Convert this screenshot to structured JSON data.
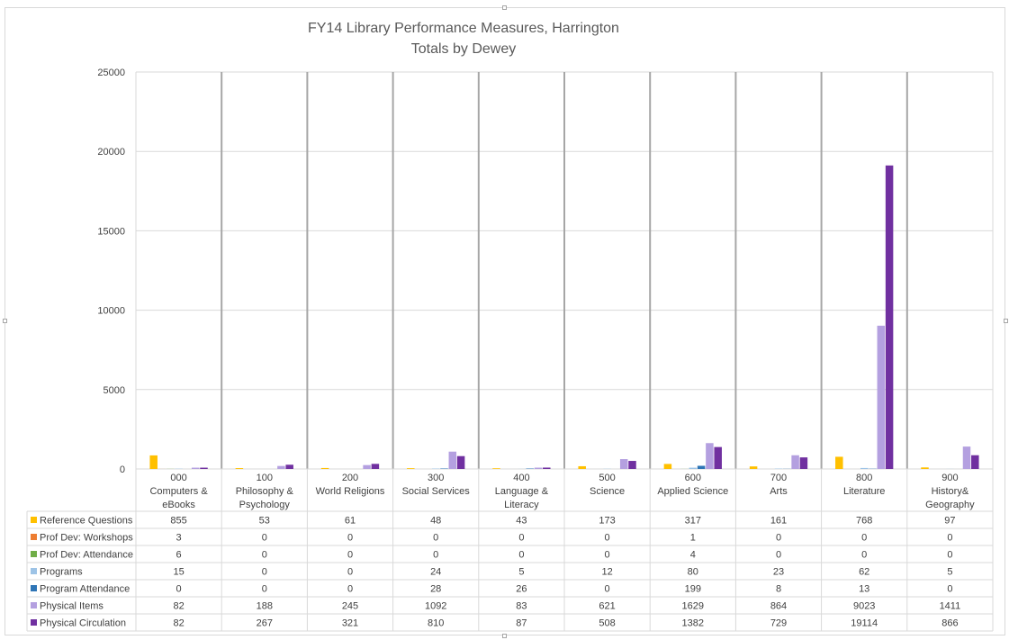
{
  "chart_data": {
    "type": "bar",
    "title": "FY14 Library Performance Measures, Harrington",
    "subtitle": "Totals by Dewey",
    "ylim": [
      0,
      25000
    ],
    "yticks": [
      0,
      5000,
      10000,
      15000,
      20000,
      25000
    ],
    "grid": true,
    "legend": "data-table",
    "categories": [
      [
        "000",
        "Computers &",
        "eBooks"
      ],
      [
        "100",
        "Philosophy &",
        "Psychology"
      ],
      [
        "200",
        "World Religions"
      ],
      [
        "300",
        "Social Services"
      ],
      [
        "400",
        "Language &",
        "Literacy"
      ],
      [
        "500",
        "Science"
      ],
      [
        "600",
        "Applied Science"
      ],
      [
        "700",
        "Arts"
      ],
      [
        "800",
        "Literature"
      ],
      [
        "900",
        "History&",
        "Geography"
      ]
    ],
    "series": [
      {
        "name": "Reference Questions",
        "color": "#ffc000",
        "values": [
          855,
          53,
          61,
          48,
          43,
          173,
          317,
          161,
          768,
          97
        ]
      },
      {
        "name": "Prof Dev: Workshops",
        "color": "#ed7d31",
        "values": [
          3,
          0,
          0,
          0,
          0,
          0,
          1,
          0,
          0,
          0
        ]
      },
      {
        "name": "Prof Dev: Attendance",
        "color": "#70ad47",
        "values": [
          6,
          0,
          0,
          0,
          0,
          0,
          4,
          0,
          0,
          0
        ]
      },
      {
        "name": "Programs",
        "color": "#9dc3e6",
        "values": [
          15,
          0,
          0,
          24,
          5,
          12,
          80,
          23,
          62,
          5
        ]
      },
      {
        "name": "Program Attendance",
        "color": "#2e75b6",
        "values": [
          0,
          0,
          0,
          28,
          26,
          0,
          199,
          8,
          13,
          0
        ]
      },
      {
        "name": "Physical Items",
        "color": "#b4a0e0",
        "values": [
          82,
          188,
          245,
          1092,
          83,
          621,
          1629,
          864,
          9023,
          1411
        ]
      },
      {
        "name": "Physical Circulation",
        "color": "#7030a0",
        "values": [
          82,
          267,
          321,
          810,
          87,
          508,
          1382,
          729,
          19114,
          866
        ]
      }
    ]
  }
}
